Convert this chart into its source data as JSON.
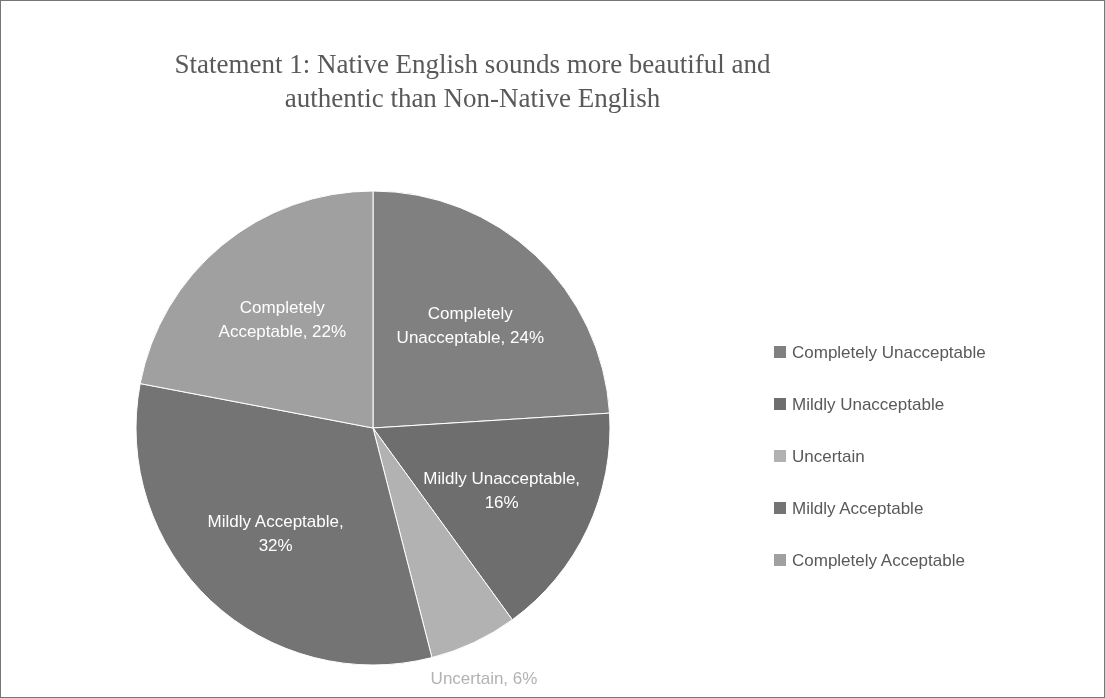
{
  "chart_data": {
    "type": "pie",
    "title": "Statement 1: Native English sounds more beautiful and authentic than Non-Native English",
    "categories": [
      "Completely Unacceptable",
      "Mildly Unacceptable",
      "Uncertain",
      "Mildly Acceptable",
      "Completely Acceptable"
    ],
    "values": [
      24,
      16,
      6,
      32,
      22
    ],
    "value_labels": [
      "Completely Unacceptable, 24%",
      "Mildly Unacceptable, 16%",
      "Uncertain, 6%",
      "Mildly Acceptable, 32%",
      "Completely Acceptable, 22%"
    ],
    "colors": [
      "#808080",
      "#6e6e6e",
      "#b2b2b2",
      "#747474",
      "#a0a0a0"
    ],
    "legend": "right"
  }
}
